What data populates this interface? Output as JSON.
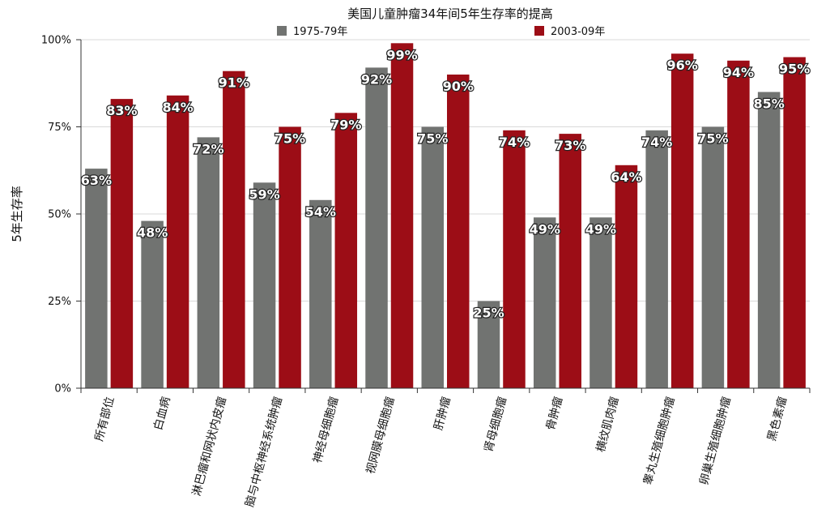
{
  "chart_data": {
    "type": "bar",
    "title": "美国儿童肿瘤34年间5年生存率的提高",
    "xlabel": "",
    "ylabel": "5年生存率",
    "ylim": [
      0,
      100
    ],
    "yticks": [
      "0%",
      "25%",
      "50%",
      "75%",
      "100%"
    ],
    "grid": true,
    "legend_position": "top",
    "categories": [
      "所有部位",
      "白血病",
      "淋巴瘤和网状内皮瘤",
      "脑与中枢神经系统肿瘤",
      "神经母细胞瘤",
      "视网膜母细胞瘤",
      "肝肿瘤",
      "肾母细胞瘤",
      "骨肿瘤",
      "横纹肌肉瘤",
      "睾丸生殖细胞肿瘤",
      "卵巢生殖细胞肿瘤",
      "黑色素瘤"
    ],
    "series": [
      {
        "name": "1975-79年",
        "color": "#717371",
        "values": [
          63,
          48,
          72,
          59,
          54,
          92,
          75,
          25,
          49,
          49,
          74,
          75,
          85
        ],
        "labels": [
          "63%",
          "48%",
          "72%",
          "59%",
          "54%",
          "92%",
          "75%",
          "25%",
          "49%",
          "49%",
          "74%",
          "75%",
          "85%"
        ]
      },
      {
        "name": "2003-09年",
        "color": "#9c0d16",
        "values": [
          83,
          84,
          91,
          75,
          79,
          99,
          90,
          74,
          73,
          64,
          96,
          94,
          95
        ],
        "labels": [
          "83%",
          "84%",
          "91%",
          "75%",
          "79%",
          "99%",
          "90%",
          "74%",
          "73%",
          "64%",
          "96%",
          "94%",
          "95%"
        ]
      }
    ]
  }
}
